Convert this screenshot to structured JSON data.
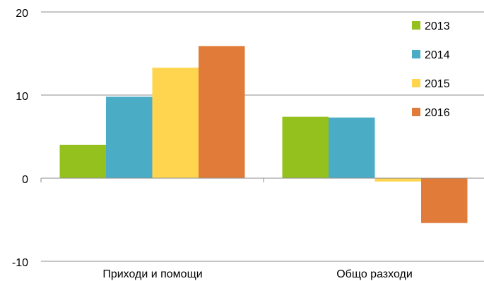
{
  "chart_data": {
    "type": "bar",
    "categories": [
      "Приходи и помощи",
      "Общо разходи"
    ],
    "series": [
      {
        "name": "2013",
        "color": "#95C11F",
        "values": [
          4.0,
          7.4
        ]
      },
      {
        "name": "2014",
        "color": "#4BACC6",
        "values": [
          9.8,
          7.3
        ]
      },
      {
        "name": "2015",
        "color": "#FFD54F",
        "values": [
          13.3,
          -0.4
        ]
      },
      {
        "name": "2016",
        "color": "#E07B39",
        "values": [
          15.9,
          -5.4
        ]
      }
    ],
    "y_ticks": [
      "20",
      "10",
      "0",
      "-10"
    ],
    "ylim": [
      -10,
      20
    ],
    "grid": true,
    "legend_position": "top-right",
    "title": "",
    "xlabel": "",
    "ylabel": ""
  }
}
